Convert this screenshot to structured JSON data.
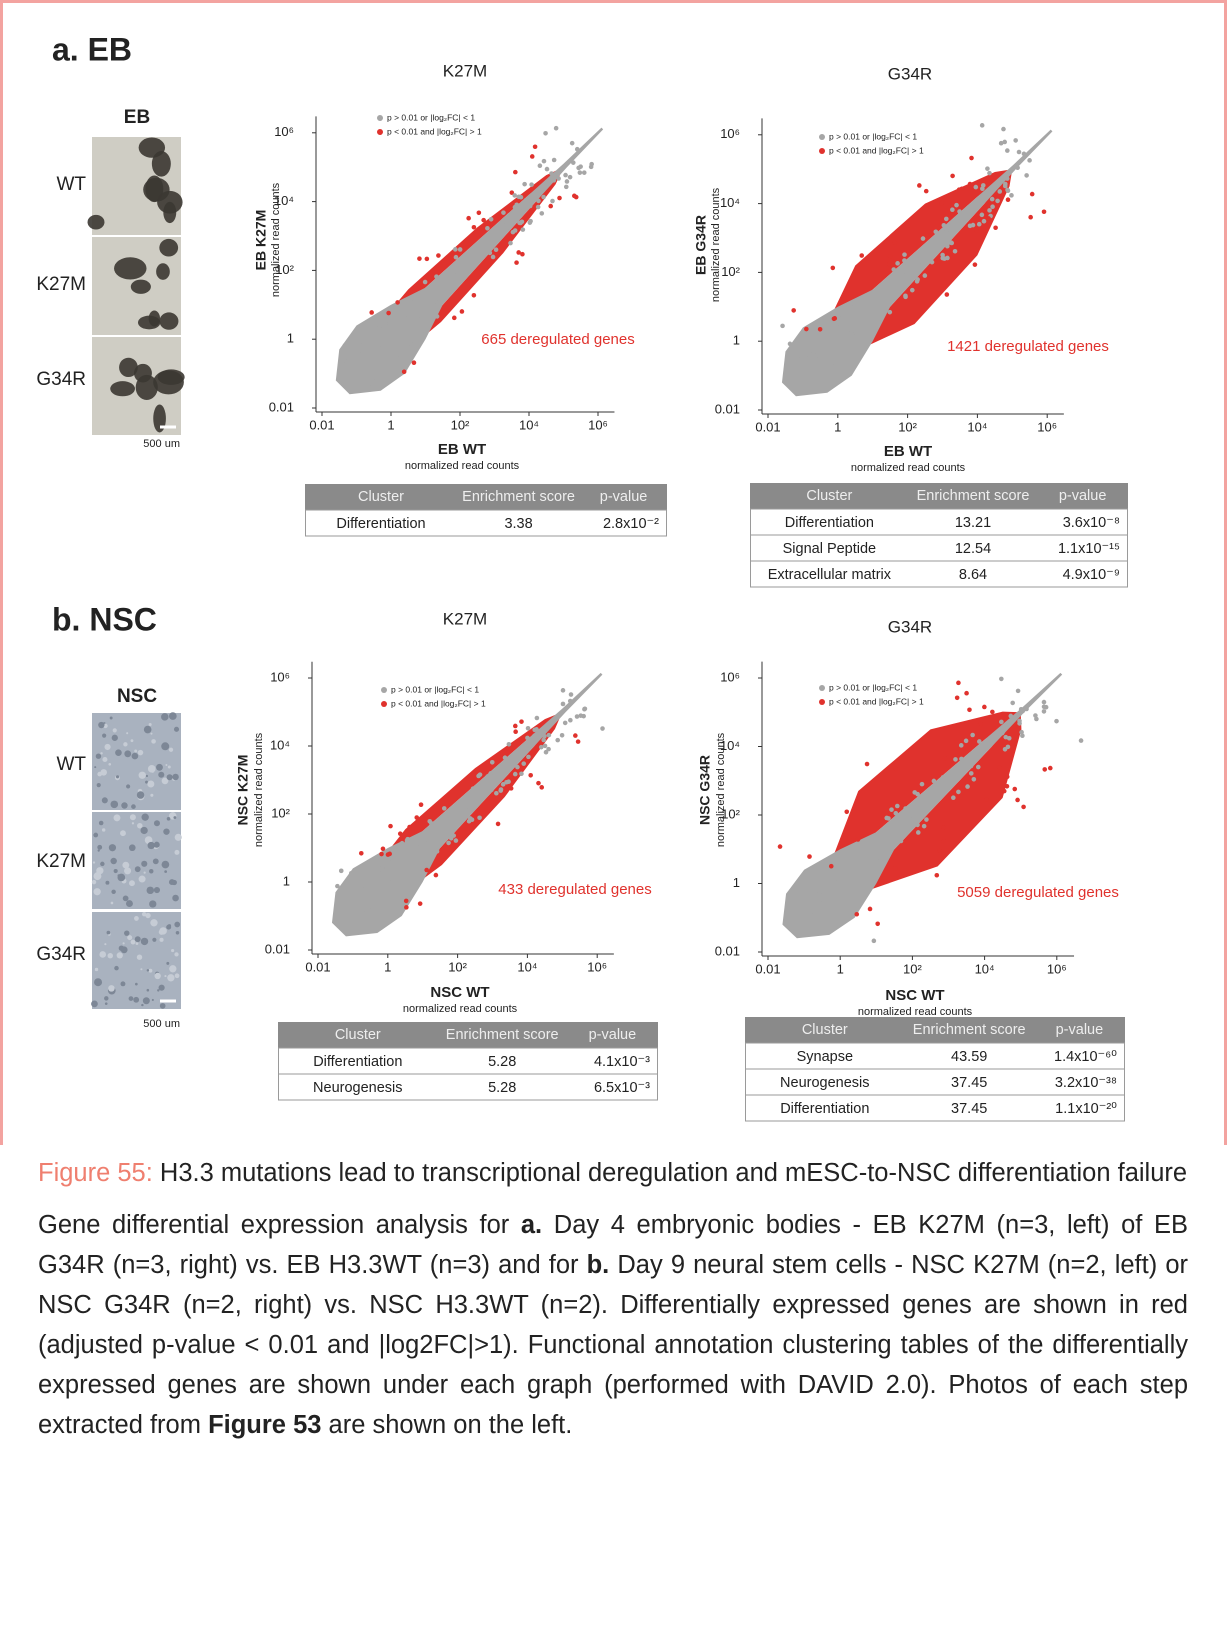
{
  "panels": [
    {
      "label": "a. EB",
      "photos": {
        "title": "EB",
        "rows": [
          "WT",
          "K27M",
          "G34R"
        ],
        "scale": "500 um"
      },
      "chart_data": [
        {
          "type": "scatter",
          "title": "K27M",
          "x_label": "EB WT",
          "x_sublabel": "normalized read counts",
          "y_label": "EB K27M",
          "y_sublabel": "normalized read counts",
          "series": [
            {
              "name": "p > 0.01 or |log₂FC| < 1",
              "color": "#a6a6a6"
            },
            {
              "name": "p < 0.01 and |log₂FC| > 1",
              "color": "#e0322d"
            }
          ],
          "annotation": "665 deregulated genes",
          "log_scale": true,
          "xlim": [
            0.01,
            3000000
          ],
          "ylim": [
            0.01,
            3000000
          ],
          "xticks": [
            0.01,
            1,
            {
              "value": 100,
              "label": "10²"
            },
            {
              "value": 10000,
              "label": "10⁴"
            },
            {
              "value": 1000000,
              "label": "10⁶"
            }
          ],
          "yticks": [
            0.01,
            1,
            {
              "value": 100,
              "label": "10²"
            },
            {
              "value": 10000,
              "label": "10⁴"
            },
            {
              "value": 1000000,
              "label": "10⁶"
            }
          ]
        },
        {
          "type": "scatter",
          "title": "G34R",
          "x_label": "EB WT",
          "x_sublabel": "normalized read counts",
          "y_label": "EB G34R",
          "y_sublabel": "normalized read counts",
          "series": [
            {
              "name": "p > 0.01 or |log₂FC| < 1",
              "color": "#a6a6a6"
            },
            {
              "name": "p < 0.01 and |log₂FC| > 1",
              "color": "#e0322d"
            }
          ],
          "annotation": "1421 deregulated genes",
          "log_scale": true,
          "xlim": [
            0.01,
            3000000
          ],
          "ylim": [
            0.01,
            3000000
          ],
          "xticks": [
            0.01,
            1,
            {
              "value": 100,
              "label": "10²"
            },
            {
              "value": 10000,
              "label": "10⁴"
            },
            {
              "value": 1000000,
              "label": "10⁶"
            }
          ],
          "yticks": [
            0.01,
            1,
            {
              "value": 100,
              "label": "10²"
            },
            {
              "value": 10000,
              "label": "10⁴"
            },
            {
              "value": 1000000,
              "label": "10⁶"
            }
          ]
        }
      ],
      "tables": [
        {
          "header": [
            "Cluster",
            "Enrichment score",
            "p-value"
          ],
          "rows": [
            [
              "Differentiation",
              3.38,
              "2.8x10⁻²"
            ]
          ]
        },
        {
          "header": [
            "Cluster",
            "Enrichment score",
            "p-value"
          ],
          "rows": [
            [
              "Differentiation",
              13.21,
              "3.6x10⁻⁸"
            ],
            [
              "Signal Peptide",
              12.54,
              "1.1x10⁻¹⁵"
            ],
            [
              "Extracellular matrix",
              8.64,
              "4.9x10⁻⁹"
            ]
          ]
        }
      ]
    },
    {
      "label": "b. NSC",
      "photos": {
        "title": "NSC",
        "rows": [
          "WT",
          "K27M",
          "G34R"
        ],
        "scale": "500 um"
      },
      "chart_data": [
        {
          "type": "scatter",
          "title": "K27M",
          "x_label": "NSC WT",
          "x_sublabel": "normalized read counts",
          "y_label": "NSC K27M",
          "y_sublabel": "normalized read counts",
          "series": [
            {
              "name": "p > 0.01 or |log₂FC| < 1",
              "color": "#a6a6a6"
            },
            {
              "name": "p < 0.01 and |log₂FC| > 1",
              "color": "#e0322d"
            }
          ],
          "annotation": "433 deregulated genes",
          "log_scale": true,
          "xlim": [
            0.01,
            3000000
          ],
          "ylim": [
            0.01,
            3000000
          ],
          "xticks": [
            0.01,
            1,
            {
              "value": 100,
              "label": "10²"
            },
            {
              "value": 10000,
              "label": "10⁴"
            },
            {
              "value": 1000000,
              "label": "10⁶"
            }
          ],
          "yticks": [
            0.01,
            1,
            {
              "value": 100,
              "label": "10²"
            },
            {
              "value": 10000,
              "label": "10⁴"
            },
            {
              "value": 1000000,
              "label": "10⁶"
            }
          ]
        },
        {
          "type": "scatter",
          "title": "G34R",
          "x_label": "NSC WT",
          "x_sublabel": "normalized read counts",
          "y_label": "NSC G34R",
          "y_sublabel": "normalized read counts",
          "series": [
            {
              "name": "p > 0.01 or |log₂FC| < 1",
              "color": "#a6a6a6"
            },
            {
              "name": "p < 0.01 and |log₂FC| > 1",
              "color": "#e0322d"
            }
          ],
          "annotation": "5059 deregulated genes",
          "log_scale": true,
          "xlim": [
            0.01,
            3000000
          ],
          "ylim": [
            0.01,
            3000000
          ],
          "xticks": [
            0.01,
            1,
            {
              "value": 100,
              "label": "10²"
            },
            {
              "value": 10000,
              "label": "10⁴"
            },
            {
              "value": 1000000,
              "label": "10⁶"
            }
          ],
          "yticks": [
            0.01,
            1,
            {
              "value": 100,
              "label": "10²"
            },
            {
              "value": 10000,
              "label": "10⁴"
            },
            {
              "value": 1000000,
              "label": "10⁶"
            }
          ]
        }
      ],
      "tables": [
        {
          "header": [
            "Cluster",
            "Enrichment score",
            "p-value"
          ],
          "rows": [
            [
              "Differentiation",
              5.28,
              "4.1x10⁻³"
            ],
            [
              "Neurogenesis",
              5.28,
              "6.5x10⁻³"
            ]
          ]
        },
        {
          "header": [
            "Cluster",
            "Enrichment score",
            "p-value"
          ],
          "rows": [
            [
              "Synapse",
              43.59,
              "1.4x10⁻⁶⁰"
            ],
            [
              "Neurogenesis",
              37.45,
              "3.2x10⁻³⁸"
            ],
            [
              "Differentiation",
              37.45,
              "1.1x10⁻²⁰"
            ]
          ]
        }
      ]
    }
  ],
  "caption": {
    "label": "Figure 55:",
    "title": "H3.3 mutations lead to transcriptional deregulation and mESC-to-NSC differentiation failure",
    "body": [
      {
        "text": "Gene differential expression analysis for ",
        "bold": false
      },
      {
        "text": "a.",
        "bold": true
      },
      {
        "text": " Day 4 embryonic bodies - EB K27M (n=3, left) of EB G34R (n=3, right) vs. EB H3.3WT (n=3) and for ",
        "bold": false
      },
      {
        "text": "b.",
        "bold": true
      },
      {
        "text": " Day 9 neural stem cells - NSC K27M (n=2, left) or NSC G34R (n=2, right) vs. NSC H3.3WT (n=2). Differentially expressed genes are shown in red (adjusted p-value < 0.01 and |log2FC|>1). Functional annotation clustering tables of the differentially expressed genes are shown under each graph (performed with DAVID 2.0). Photos of each step extracted from ",
        "bold": false
      },
      {
        "text": "Figure 53",
        "bold": true
      },
      {
        "text": " are shown on the left.",
        "bold": false
      }
    ]
  }
}
